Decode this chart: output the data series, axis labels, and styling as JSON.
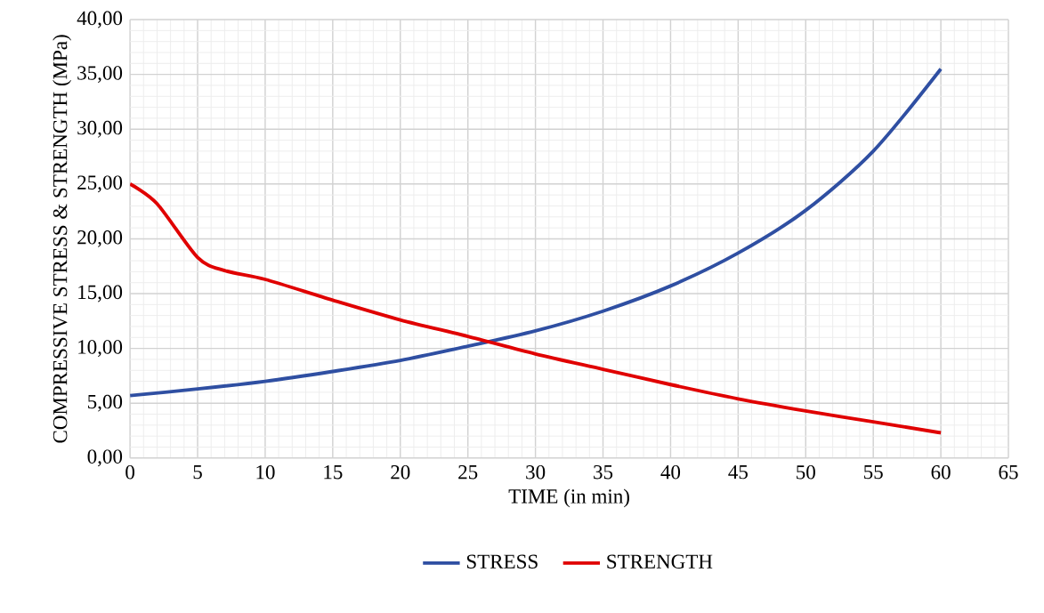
{
  "chart_data": {
    "type": "line",
    "xlabel": "TIME (in min)",
    "ylabel": "COMPRESSIVE STRESS & STRENGTH (MPa)",
    "xlim": [
      0,
      65
    ],
    "ylim": [
      0,
      40
    ],
    "xticks": [
      0,
      5,
      10,
      15,
      20,
      25,
      30,
      35,
      40,
      45,
      50,
      55,
      60,
      65
    ],
    "yticks": [
      {
        "value": 0,
        "label": "0,00"
      },
      {
        "value": 5,
        "label": "5,00"
      },
      {
        "value": 10,
        "label": "10,00"
      },
      {
        "value": 15,
        "label": "15,00"
      },
      {
        "value": 20,
        "label": "20,00"
      },
      {
        "value": 25,
        "label": "25,00"
      },
      {
        "value": 30,
        "label": "30,00"
      },
      {
        "value": 35,
        "label": "35,00"
      },
      {
        "value": 40,
        "label": "40,00"
      }
    ],
    "grid": true,
    "legend": "bottom",
    "series": [
      {
        "name": "STRESS",
        "color": "#2f4fa2",
        "x": [
          0,
          5,
          10,
          15,
          20,
          25,
          30,
          35,
          40,
          45,
          50,
          55,
          60
        ],
        "values": [
          5.7,
          6.3,
          7.0,
          7.9,
          8.9,
          10.2,
          11.6,
          13.4,
          15.7,
          18.7,
          22.6,
          28.0,
          35.5
        ]
      },
      {
        "name": "STRENGTH",
        "color": "#e00000",
        "x": [
          0,
          2,
          5,
          7,
          10,
          15,
          20,
          25,
          30,
          35,
          40,
          45,
          50,
          55,
          60
        ],
        "values": [
          25.0,
          23.2,
          18.3,
          17.1,
          16.3,
          14.4,
          12.6,
          11.1,
          9.5,
          8.1,
          6.7,
          5.4,
          4.3,
          3.3,
          2.3
        ]
      }
    ]
  }
}
